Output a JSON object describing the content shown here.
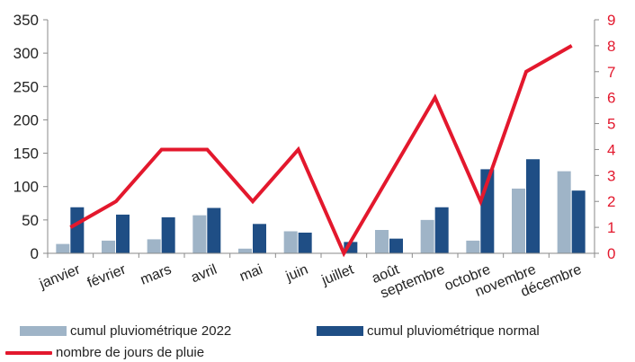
{
  "chart_data": {
    "type": "bar",
    "categories": [
      "janvier",
      "février",
      "mars",
      "avril",
      "mai",
      "juin",
      "juillet",
      "août",
      "septembre",
      "octobre",
      "novembre",
      "décembre"
    ],
    "series": [
      {
        "name": "cumul pluviométrique 2022",
        "type": "bar",
        "axis": "left",
        "color": "#9fb4c7",
        "values": [
          14,
          19,
          21,
          57,
          7,
          33,
          0,
          35,
          50,
          19,
          97,
          123
        ]
      },
      {
        "name": "cumul pluviométrique normal",
        "type": "bar",
        "axis": "left",
        "color": "#1f4e85",
        "values": [
          69,
          58,
          54,
          68,
          44,
          31,
          17,
          22,
          69,
          126,
          141,
          94
        ]
      },
      {
        "name": "nombre de jours de pluie",
        "type": "line",
        "axis": "right",
        "color": "#e3182d",
        "values": [
          1,
          2,
          4,
          4,
          2,
          4,
          0,
          3,
          6,
          2,
          7,
          8
        ]
      }
    ],
    "y_left": {
      "range": [
        0,
        350
      ],
      "ticks": [
        "0",
        "50",
        "100",
        "150",
        "200",
        "250",
        "300",
        "350"
      ]
    },
    "y_right": {
      "range": [
        0,
        9
      ],
      "ticks": [
        "0",
        "1",
        "2",
        "3",
        "4",
        "5",
        "6",
        "7",
        "8",
        "9"
      ],
      "color": "#e3182d"
    },
    "grid": false,
    "legend_position": "bottom"
  }
}
